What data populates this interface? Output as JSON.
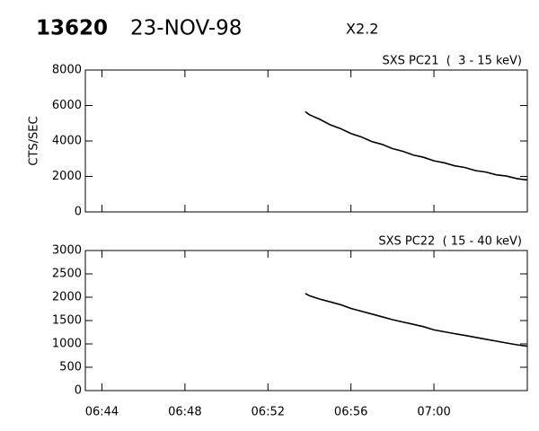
{
  "header": {
    "id": "13620",
    "date": "23-NOV-98",
    "class": "X2.2"
  },
  "chart_data": [
    {
      "type": "line",
      "title": "SXS PC21  (  3 - 15 keV)",
      "ylabel": "CTS/SEC",
      "color": "#000000",
      "x": [
        413.8,
        414,
        414.5,
        415,
        415.5,
        416,
        416.5,
        417,
        417.5,
        418,
        418.5,
        419,
        419.5,
        420,
        420.5,
        421,
        421.5,
        422,
        422.5,
        423,
        423.5,
        424,
        424.5
      ],
      "values": [
        5650,
        5480,
        5220,
        4910,
        4700,
        4420,
        4230,
        3970,
        3810,
        3570,
        3420,
        3210,
        3080,
        2880,
        2770,
        2600,
        2500,
        2330,
        2250,
        2090,
        2020,
        1880,
        1800
      ],
      "xlim": [
        403.2,
        424.5
      ],
      "xticks": [
        404,
        408,
        412,
        416,
        420
      ],
      "ylim": [
        0,
        8000
      ],
      "yticks": [
        0,
        2000,
        4000,
        6000,
        8000
      ]
    },
    {
      "type": "line",
      "title": "SXS PC22  ( 15 - 40 keV)",
      "color": "#000000",
      "x": [
        413.8,
        414,
        414.5,
        415,
        415.5,
        416,
        416.5,
        417,
        417.5,
        418,
        418.5,
        419,
        419.5,
        420,
        420.5,
        421,
        421.5,
        422,
        422.5,
        423,
        423.5,
        424,
        424.5
      ],
      "values": [
        2080,
        2030,
        1960,
        1900,
        1840,
        1760,
        1700,
        1640,
        1580,
        1520,
        1470,
        1420,
        1370,
        1300,
        1260,
        1220,
        1180,
        1140,
        1100,
        1060,
        1020,
        980,
        950
      ],
      "xlim": [
        403.2,
        424.5
      ],
      "xticks": [
        {
          "value": 404,
          "label": "06:44"
        },
        {
          "value": 408,
          "label": "06:48"
        },
        {
          "value": 412,
          "label": "06:52"
        },
        {
          "value": 416,
          "label": "06:56"
        },
        {
          "value": 420,
          "label": "07:00"
        }
      ],
      "ylim": [
        0,
        3000
      ],
      "yticks": [
        0,
        500,
        1000,
        1500,
        2000,
        2500,
        3000
      ]
    }
  ]
}
